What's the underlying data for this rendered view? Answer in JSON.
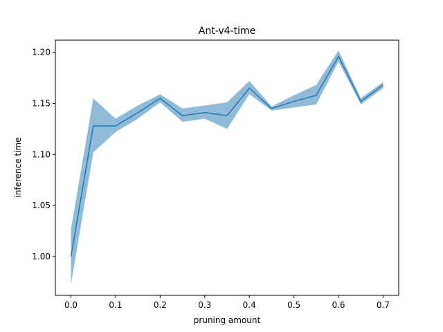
{
  "chart_data": {
    "type": "line",
    "title": "Ant-v4-time",
    "xlabel": "pruning amount",
    "ylabel": "inference time",
    "xlim": [
      -0.035,
      0.735
    ],
    "ylim": [
      0.962,
      1.212
    ],
    "xticks": [
      0.0,
      0.1,
      0.2,
      0.3,
      0.4,
      0.5,
      0.6,
      0.7
    ],
    "xtick_labels": [
      "0.0",
      "0.1",
      "0.2",
      "0.3",
      "0.4",
      "0.5",
      "0.6",
      "0.7"
    ],
    "yticks": [
      1.0,
      1.05,
      1.1,
      1.15,
      1.2
    ],
    "ytick_labels": [
      "1.00",
      "1.05",
      "1.10",
      "1.15",
      "1.20"
    ],
    "grid": false,
    "legend": "none",
    "series": [
      {
        "color": "#1f77b4",
        "band_color": "#1f77b4",
        "band_opacity": 0.5,
        "x": [
          0.0,
          0.05,
          0.1,
          0.15,
          0.2,
          0.25,
          0.3,
          0.35,
          0.4,
          0.45,
          0.5,
          0.55,
          0.6,
          0.65,
          0.7
        ],
        "y": [
          1.0,
          1.128,
          1.128,
          1.141,
          1.155,
          1.138,
          1.141,
          1.138,
          1.165,
          1.145,
          1.152,
          1.158,
          1.196,
          1.152,
          1.168
        ],
        "lower": [
          0.973,
          1.102,
          1.122,
          1.135,
          1.151,
          1.132,
          1.135,
          1.125,
          1.159,
          1.143,
          1.146,
          1.149,
          1.191,
          1.149,
          1.165
        ],
        "upper": [
          1.027,
          1.155,
          1.135,
          1.148,
          1.159,
          1.145,
          1.148,
          1.151,
          1.172,
          1.147,
          1.158,
          1.168,
          1.202,
          1.155,
          1.171
        ]
      }
    ]
  }
}
